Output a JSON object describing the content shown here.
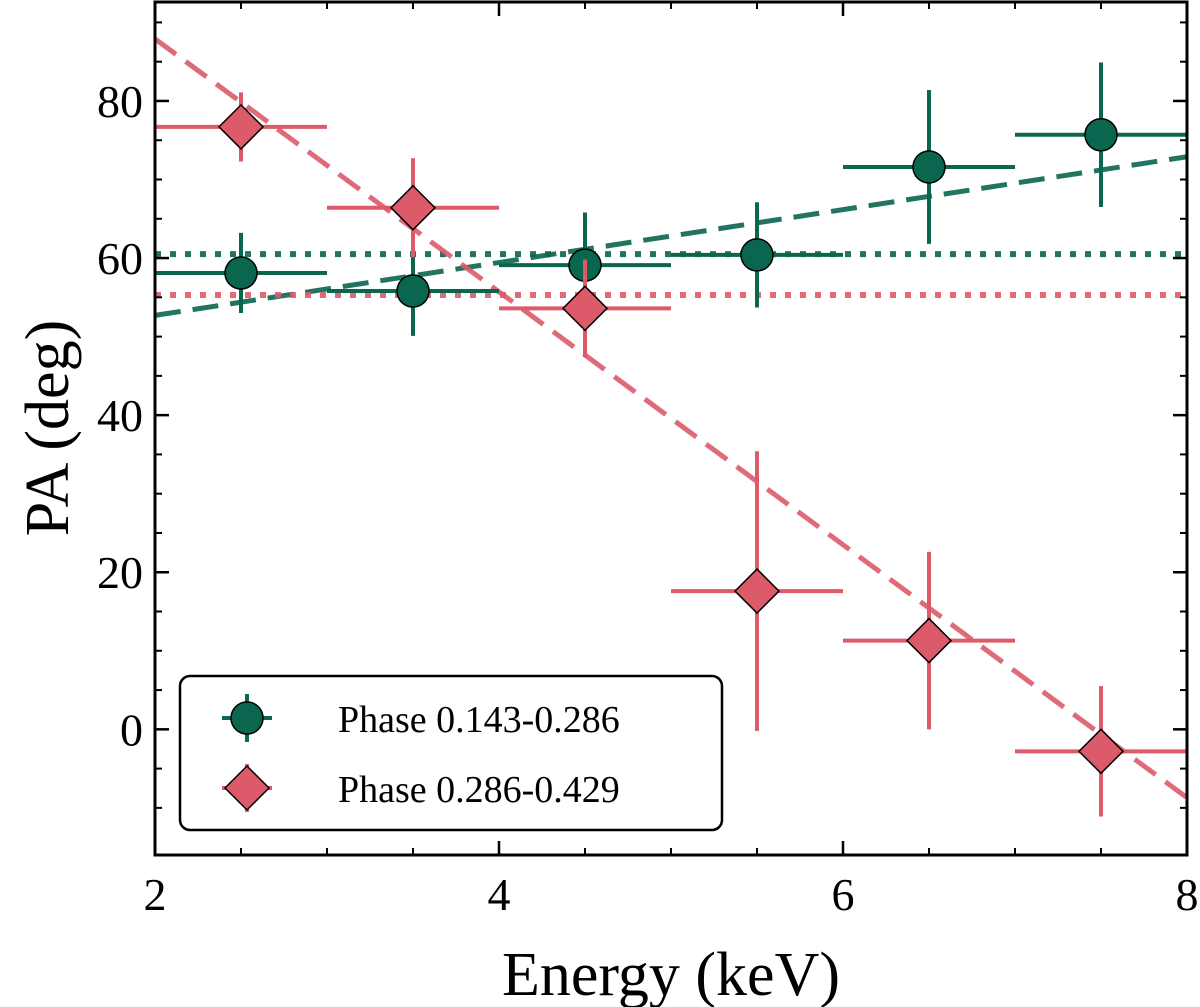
{
  "chart_data": {
    "type": "scatter",
    "xlabel": "Energy (keV)",
    "ylabel": "PA (deg)",
    "xlim": [
      2,
      8
    ],
    "ylim": [
      -16,
      92.6
    ],
    "xticks": [
      2,
      4,
      6,
      8
    ],
    "yticks": [
      0,
      20,
      40,
      60,
      80
    ],
    "grid": false,
    "legend_position": "bottom-left",
    "series": [
      {
        "name": "Phase 0.143-0.286",
        "color": "#0b6650",
        "marker": "circle",
        "x": [
          2.5,
          3.5,
          4.5,
          5.5,
          6.5,
          7.5
        ],
        "xerr": [
          0.5,
          0.5,
          0.5,
          0.5,
          0.5,
          0.5
        ],
        "y": [
          58.1,
          55.8,
          59.1,
          60.4,
          71.6,
          75.7
        ],
        "yerr": [
          5.1,
          5.7,
          6.7,
          6.7,
          9.8,
          9.2
        ],
        "constant_fit": 60.5,
        "linear_fit": [
          [
            2,
            52.7
          ],
          [
            8,
            72.9
          ]
        ]
      },
      {
        "name": "Phase 0.286-0.429",
        "color": "#dc5a6a",
        "marker": "diamond",
        "x": [
          2.5,
          3.5,
          4.5,
          5.5,
          6.5,
          7.5
        ],
        "xerr": [
          0.5,
          0.5,
          0.5,
          0.5,
          0.5,
          0.5
        ],
        "y": [
          76.7,
          66.4,
          53.6,
          17.6,
          11.3,
          -2.8
        ],
        "yerr": [
          4.4,
          6.3,
          6.2,
          17.8,
          11.3,
          8.3
        ],
        "constant_fit": 55.3,
        "linear_fit": [
          [
            2,
            87.9
          ],
          [
            8,
            -8.7
          ]
        ]
      }
    ]
  }
}
